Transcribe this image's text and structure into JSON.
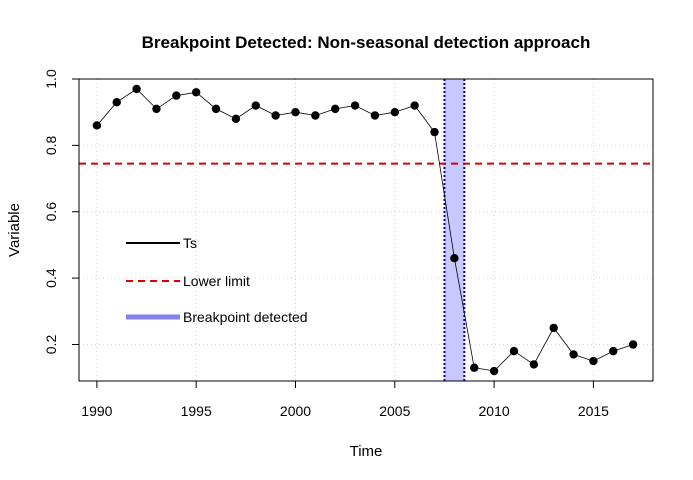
{
  "chart_data": {
    "type": "line",
    "title": "Breakpoint Detected: Non-seasonal detection approach",
    "xlabel": "Time",
    "ylabel": "Variable",
    "xlim": [
      1989.1,
      2018.0
    ],
    "ylim": [
      0.09,
      1.0
    ],
    "xticks": [
      1990,
      1995,
      2000,
      2005,
      2010,
      2015
    ],
    "yticks": [
      0.2,
      0.4,
      0.6,
      0.8,
      1.0
    ],
    "ytick_labels": [
      "0.2",
      "0.4",
      "0.6",
      "0.8",
      "1.0"
    ],
    "grid": true,
    "series": [
      {
        "name": "Ts",
        "color": "#000000",
        "x": [
          1990,
          1991,
          1992,
          1993,
          1994,
          1995,
          1996,
          1997,
          1998,
          1999,
          2000,
          2001,
          2002,
          2003,
          2004,
          2005,
          2006,
          2007,
          2008,
          2009,
          2010,
          2011,
          2012,
          2013,
          2014,
          2015,
          2016,
          2017
        ],
        "y": [
          0.86,
          0.93,
          0.97,
          0.91,
          0.95,
          0.96,
          0.91,
          0.88,
          0.92,
          0.89,
          0.9,
          0.89,
          0.91,
          0.92,
          0.89,
          0.9,
          0.92,
          0.84,
          0.46,
          0.13,
          0.12,
          0.18,
          0.14,
          0.25,
          0.17,
          0.15,
          0.18,
          0.2
        ]
      }
    ],
    "lower_limit": {
      "name": "Lower limit",
      "value": 0.745,
      "color": "#dd0000"
    },
    "breakpoint": {
      "name": "Breakpoint detected",
      "x_start": 2007.5,
      "x_end": 2008.5,
      "fill": "#c8c8ff",
      "line_color": "#0000cc",
      "legend_color": "#8080f0"
    },
    "legend": {
      "placement": "middle-left",
      "entries": [
        "Ts",
        "Lower limit",
        "Breakpoint detected"
      ]
    }
  }
}
